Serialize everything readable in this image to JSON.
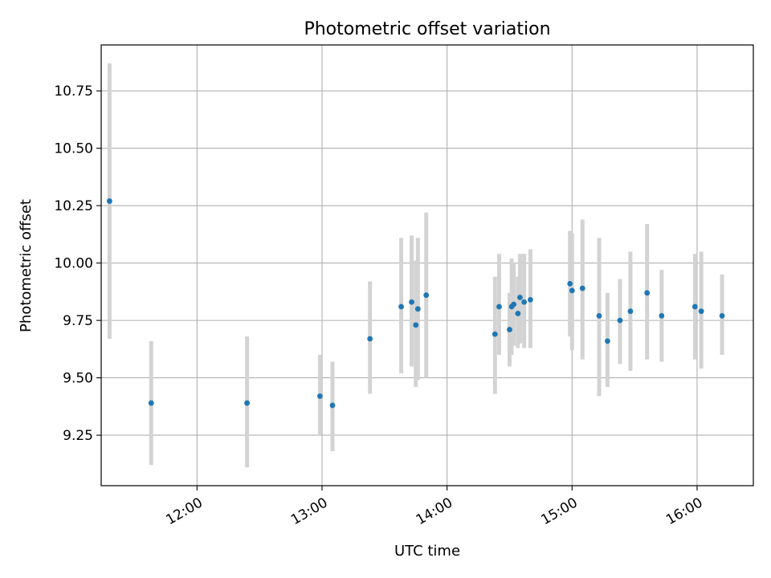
{
  "chart_data": {
    "type": "scatter",
    "title": "Photometric offset variation",
    "xlabel": "UTC time",
    "ylabel": "Photometric offset",
    "x_unit": "UTC clock time (HH:MM)",
    "xlim": [
      "11:14",
      "16:27"
    ],
    "ylim": [
      9.03,
      10.95
    ],
    "x_ticks": [
      "12:00",
      "13:00",
      "14:00",
      "15:00",
      "16:00"
    ],
    "y_ticks": [
      9.25,
      9.5,
      9.75,
      10.0,
      10.25,
      10.5,
      10.75
    ],
    "y_tick_labels": [
      "9.25",
      "9.50",
      "9.75",
      "10.00",
      "10.25",
      "10.50",
      "10.75"
    ],
    "grid": true,
    "point_color": "#1f77b4",
    "errorbar_color": "#d3d3d3",
    "points": [
      {
        "x": "11:18",
        "y": 10.27,
        "low": 9.67,
        "high": 10.87
      },
      {
        "x": "11:38",
        "y": 9.39,
        "low": 9.12,
        "high": 9.66
      },
      {
        "x": "12:24",
        "y": 9.39,
        "low": 9.11,
        "high": 9.68
      },
      {
        "x": "12:59",
        "y": 9.42,
        "low": 9.25,
        "high": 9.6
      },
      {
        "x": "13:05",
        "y": 9.38,
        "low": 9.18,
        "high": 9.57
      },
      {
        "x": "13:23",
        "y": 9.67,
        "low": 9.43,
        "high": 9.92
      },
      {
        "x": "13:38",
        "y": 9.81,
        "low": 9.52,
        "high": 10.11
      },
      {
        "x": "13:43",
        "y": 9.83,
        "low": 9.55,
        "high": 10.12
      },
      {
        "x": "13:45",
        "y": 9.73,
        "low": 9.46,
        "high": 10.01
      },
      {
        "x": "13:46",
        "y": 9.8,
        "low": 9.49,
        "high": 10.11
      },
      {
        "x": "13:50",
        "y": 9.86,
        "low": 9.5,
        "high": 10.22
      },
      {
        "x": "14:23",
        "y": 9.69,
        "low": 9.43,
        "high": 9.94
      },
      {
        "x": "14:25",
        "y": 9.81,
        "low": 9.6,
        "high": 10.04
      },
      {
        "x": "14:30",
        "y": 9.71,
        "low": 9.55,
        "high": 9.87
      },
      {
        "x": "14:31",
        "y": 9.81,
        "low": 9.6,
        "high": 10.02
      },
      {
        "x": "14:32",
        "y": 9.82,
        "low": 9.64,
        "high": 10.0
      },
      {
        "x": "14:34",
        "y": 9.78,
        "low": 9.63,
        "high": 9.94
      },
      {
        "x": "14:35",
        "y": 9.85,
        "low": 9.65,
        "high": 10.04
      },
      {
        "x": "14:37",
        "y": 9.83,
        "low": 9.63,
        "high": 10.04
      },
      {
        "x": "14:40",
        "y": 9.84,
        "low": 9.63,
        "high": 10.06
      },
      {
        "x": "14:59",
        "y": 9.91,
        "low": 9.68,
        "high": 10.14
      },
      {
        "x": "15:00",
        "y": 9.88,
        "low": 9.62,
        "high": 10.13
      },
      {
        "x": "15:05",
        "y": 9.89,
        "low": 9.58,
        "high": 10.19
      },
      {
        "x": "15:13",
        "y": 9.77,
        "low": 9.42,
        "high": 10.11
      },
      {
        "x": "15:17",
        "y": 9.66,
        "low": 9.46,
        "high": 9.87
      },
      {
        "x": "15:23",
        "y": 9.75,
        "low": 9.56,
        "high": 9.93
      },
      {
        "x": "15:28",
        "y": 9.79,
        "low": 9.53,
        "high": 10.05
      },
      {
        "x": "15:36",
        "y": 9.87,
        "low": 9.58,
        "high": 10.17
      },
      {
        "x": "15:43",
        "y": 9.77,
        "low": 9.57,
        "high": 9.97
      },
      {
        "x": "15:59",
        "y": 9.81,
        "low": 9.58,
        "high": 10.04
      },
      {
        "x": "16:02",
        "y": 9.79,
        "low": 9.54,
        "high": 10.05
      },
      {
        "x": "16:12",
        "y": 9.77,
        "low": 9.6,
        "high": 9.95
      }
    ]
  }
}
